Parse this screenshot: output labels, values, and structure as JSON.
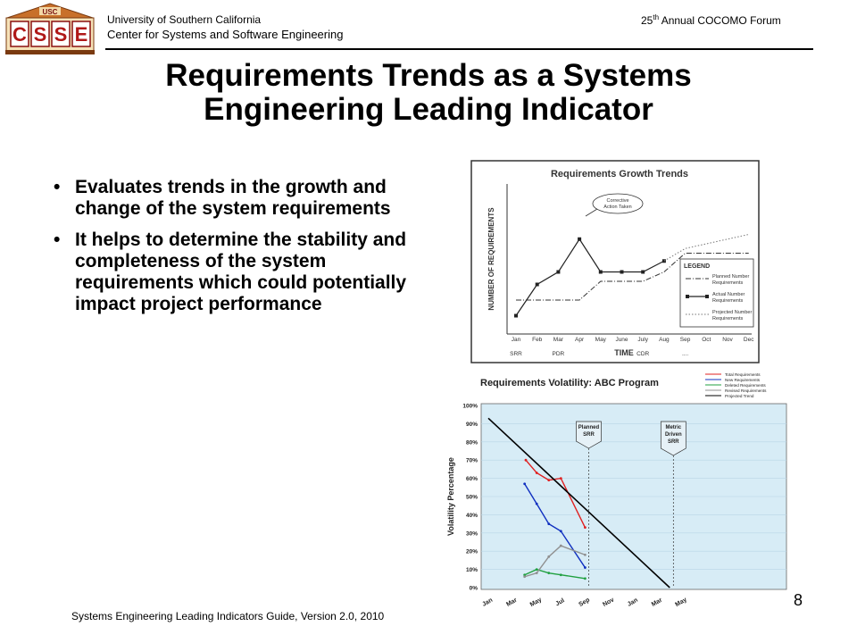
{
  "header": {
    "university": "University of Southern California",
    "center": "Center for Systems and Software Engineering",
    "forum_num": "25",
    "forum_suffix": "th",
    "forum_text": " Annual COCOMO Forum",
    "logo_top": "USC",
    "logo_letters": [
      "C",
      "S",
      "S",
      "E"
    ]
  },
  "title_line1": "Requirements Trends as a Systems",
  "title_line2": "Engineering Leading Indicator",
  "bullets": [
    {
      "marker": "•",
      "text": "Evaluates trends in the growth and change of the system requirements"
    },
    {
      "marker": "•",
      "text": "It helps to determine the stability and completeness of the system requirements which could potentially impact project performance"
    }
  ],
  "footer": "Systems Engineering Leading Indicators Guide, Version 2.0, 2010",
  "page_number": "8",
  "chart_data": [
    {
      "type": "line",
      "title": "Requirements Growth Trends",
      "ylabel": "NUMBER OF REQUIREMENTS",
      "xlabel": "TIME",
      "categories": [
        "Jan",
        "Feb",
        "Mar",
        "Apr",
        "May",
        "June",
        "July",
        "Aug",
        "Sep",
        "Oct",
        "Nov",
        "Dec"
      ],
      "milestones": [
        {
          "label": "SRR",
          "at": "Jan"
        },
        {
          "label": "PDR",
          "at": "Mar"
        },
        {
          "label": "CDR",
          "at": "July"
        },
        {
          "label": "....",
          "at": "Sep"
        }
      ],
      "annotation": "Corrective Action Taken",
      "annotation_at": "Apr",
      "legend_title": "LEGEND",
      "legend_position": "bottom-right",
      "series": [
        {
          "name": "Planned Number Requirements",
          "style": "dash-dot",
          "values": [
            20,
            20,
            20,
            20,
            32,
            32,
            32,
            38,
            50,
            50,
            50,
            50
          ]
        },
        {
          "name": "Actual Number Requirements",
          "style": "solid-square",
          "values": [
            10,
            30,
            38,
            59,
            38,
            38,
            38,
            45,
            null,
            null,
            null,
            null
          ]
        },
        {
          "name": "Projected Number Requirements",
          "style": "dotted",
          "values": [
            null,
            null,
            null,
            null,
            null,
            null,
            null,
            45,
            53,
            56,
            59,
            62
          ]
        }
      ]
    },
    {
      "type": "line",
      "title": "Requirements Volatility: ABC Program",
      "ylabel": "Volatility Percentage",
      "ylim": [
        0,
        100
      ],
      "yticks": [
        "0%",
        "10%",
        "20%",
        "30%",
        "40%",
        "50%",
        "60%",
        "70%",
        "80%",
        "90%",
        "100%"
      ],
      "categories": [
        "Jan",
        "Mar",
        "May",
        "Jul",
        "Sep",
        "Nov",
        "Jan",
        "Mar",
        "May"
      ],
      "milestones": [
        {
          "label": "Planned SRR",
          "at": 8.3
        },
        {
          "label": "Metric Driven SRR",
          "at": 15.3
        }
      ],
      "legend_position": "top-right",
      "series": [
        {
          "name": "Total Requirements",
          "color": "#e02020",
          "x": [
            3.1,
            4.0,
            5.0,
            6.0,
            8.0
          ],
          "values": [
            70,
            63,
            59,
            60,
            33
          ]
        },
        {
          "name": "New Requirements",
          "color": "#1030c0",
          "x": [
            3.0,
            4.0,
            5.0,
            6.0,
            8.0
          ],
          "values": [
            57,
            46,
            35,
            31,
            11
          ]
        },
        {
          "name": "Deleted Requirements",
          "color": "#20a040",
          "x": [
            3.0,
            4.0,
            5.0,
            6.0,
            8.0
          ],
          "values": [
            7,
            10,
            8,
            7,
            5
          ]
        },
        {
          "name": "Revised Requirements",
          "color": "#909090",
          "x": [
            3.0,
            4.0,
            5.0,
            6.0,
            8.0
          ],
          "values": [
            6,
            8,
            17,
            23,
            18
          ]
        },
        {
          "name": "Projected Trend",
          "color": "#000000",
          "x": [
            0.0,
            15.0
          ],
          "values": [
            93,
            0
          ]
        }
      ]
    }
  ]
}
